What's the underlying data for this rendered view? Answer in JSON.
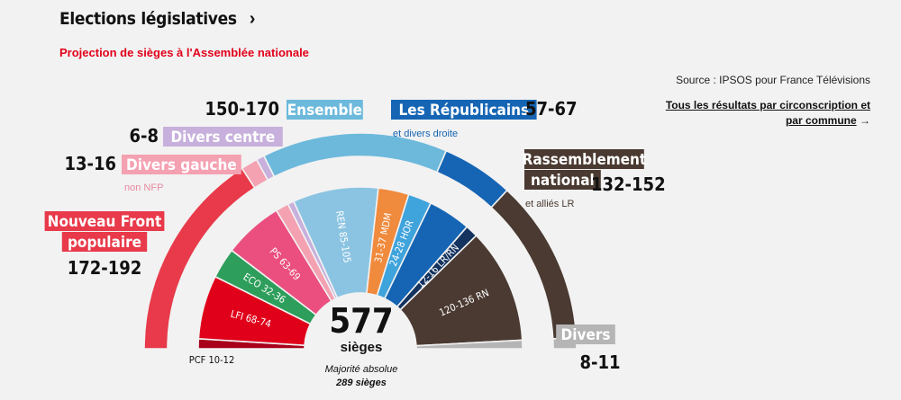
{
  "header": {
    "title": "Elections législatives",
    "chevron": "›"
  },
  "subtitle": "Projection de sièges à l'Assemblée nationale",
  "source": "Source : IPSOS pour France Télévisions",
  "link": {
    "text": "Tous les résultats par circonscription et par commune",
    "arrow": "→"
  },
  "center": {
    "total": "577",
    "unit": "sièges",
    "majority_label": "Majorité absolue",
    "majority_value": "289 sièges"
  },
  "chart_data": {
    "type": "hemicycle",
    "total_seats": 577,
    "majority": 289,
    "blocs": [
      {
        "name": "Nouveau Front populaire",
        "range": "172-192",
        "low": 172,
        "high": 192,
        "color": "#e83a4a",
        "label_color": "#e83a4a"
      },
      {
        "name": "Divers gauche",
        "sub": "non NFP",
        "range": "13-16",
        "low": 13,
        "high": 16,
        "color": "#f4a1b1",
        "label_color": "#f4a1b1"
      },
      {
        "name": "Divers centre",
        "range": "6-8",
        "low": 6,
        "high": 8,
        "color": "#c7b0dc",
        "label_color": "#c7b0dc"
      },
      {
        "name": "Ensemble",
        "range": "150-170",
        "low": 150,
        "high": 170,
        "color": "#6cb9dc",
        "label_color": "#6cb9dc"
      },
      {
        "name": "Les Républicains",
        "sub": "et divers droite",
        "range": "57-67",
        "low": 57,
        "high": 67,
        "color": "#1565b4",
        "label_color": "#1565b4"
      },
      {
        "name": "Rassemblement national",
        "sub": "et alliés LR",
        "range": "132-152",
        "low": 132,
        "high": 152,
        "color": "#4a3a31",
        "label_color": "#4a3a31"
      },
      {
        "name": "Divers",
        "range": "8-11",
        "low": 8,
        "high": 11,
        "color": "#b5b5b5",
        "label_color": "#b5b5b5"
      }
    ],
    "parties": [
      {
        "name": "PCF",
        "label": "PCF 10-12",
        "low": 10,
        "high": 12,
        "color": "#a8001b"
      },
      {
        "name": "LFI",
        "label": "LFI 68-74",
        "low": 68,
        "high": 74,
        "color": "#e0001a"
      },
      {
        "name": "ECO",
        "label": "ECO 32-36",
        "low": 32,
        "high": 36,
        "color": "#2d9e5b"
      },
      {
        "name": "PS",
        "label": "PS 63-69",
        "low": 63,
        "high": 69,
        "color": "#ea4f80"
      },
      {
        "name": "DVG",
        "label": "",
        "low": 13,
        "high": 16,
        "color": "#f4a1b1"
      },
      {
        "name": "DVC",
        "label": "",
        "low": 6,
        "high": 8,
        "color": "#c7b0dc"
      },
      {
        "name": "REN",
        "label": "REN 85-105",
        "low": 85,
        "high": 105,
        "color": "#8bc4e2"
      },
      {
        "name": "MDM",
        "label": "31-37 MDM",
        "low": 31,
        "high": 37,
        "color": "#f08a3c"
      },
      {
        "name": "HOR",
        "label": "24-28 HOR",
        "low": 24,
        "high": 28,
        "color": "#3fa3dc"
      },
      {
        "name": "LR",
        "label": "",
        "low": 45,
        "high": 50,
        "color": "#1565b4"
      },
      {
        "name": "LR/RN",
        "label": "12-16 LR/RN",
        "low": 12,
        "high": 16,
        "color": "#14335f"
      },
      {
        "name": "RN",
        "label": "120-136 RN",
        "low": 120,
        "high": 136,
        "color": "#4a3a31"
      },
      {
        "name": "DIV",
        "label": "",
        "low": 8,
        "high": 11,
        "color": "#b5b5b5"
      }
    ]
  }
}
